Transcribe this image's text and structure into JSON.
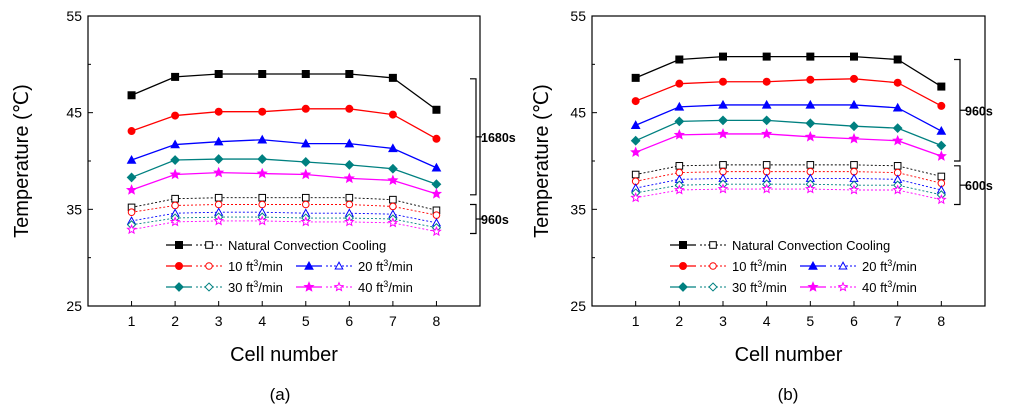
{
  "chart_data": [
    {
      "type": "line",
      "caption": "(a)",
      "xlabel": "Cell number",
      "ylabel": "Temperature (℃)",
      "categories": [
        1,
        2,
        3,
        4,
        5,
        6,
        7,
        8
      ],
      "xlim": [
        0,
        9
      ],
      "ylim": [
        25,
        55
      ],
      "yticks": [
        25,
        35,
        45,
        55
      ],
      "legend_position": "bottom-center",
      "legend_title": "Natural Convection Cooling",
      "legend_rows": [
        [
          "10 ft³/min",
          "20 ft³/min"
        ],
        [
          "30 ft³/min",
          "40 ft³/min"
        ]
      ],
      "brackets": [
        {
          "label": "1680s",
          "from": 36.5,
          "to": 48.5
        },
        {
          "label": "960s",
          "from": 32.5,
          "to": 35.5
        }
      ],
      "series": [
        {
          "name": "Natural Convection Cooling",
          "time": "1680s",
          "marker": "square",
          "filled": true,
          "color": "#000000",
          "values": [
            46.8,
            48.7,
            49.0,
            49.0,
            49.0,
            49.0,
            48.6,
            45.3
          ]
        },
        {
          "name": "10 ft³/min",
          "time": "1680s",
          "marker": "circle",
          "filled": true,
          "color": "#ff0000",
          "values": [
            43.1,
            44.7,
            45.1,
            45.1,
            45.4,
            45.4,
            44.8,
            42.3
          ]
        },
        {
          "name": "20 ft³/min",
          "time": "1680s",
          "marker": "triangle",
          "filled": true,
          "color": "#0000ff",
          "values": [
            40.1,
            41.7,
            42.0,
            42.2,
            41.8,
            41.8,
            41.3,
            39.3
          ]
        },
        {
          "name": "30 ft³/min",
          "time": "1680s",
          "marker": "diamond",
          "filled": true,
          "color": "#008080",
          "values": [
            38.3,
            40.1,
            40.2,
            40.2,
            39.9,
            39.6,
            39.2,
            37.6
          ]
        },
        {
          "name": "40 ft³/min",
          "time": "1680s",
          "marker": "star",
          "filled": true,
          "color": "#ff00ff",
          "values": [
            37.0,
            38.6,
            38.8,
            38.7,
            38.6,
            38.2,
            38.0,
            36.6
          ]
        },
        {
          "name": "Natural Convection Cooling",
          "time": "960s",
          "marker": "square",
          "filled": false,
          "color": "#000000",
          "values": [
            35.2,
            36.1,
            36.2,
            36.2,
            36.2,
            36.2,
            36.0,
            34.9
          ]
        },
        {
          "name": "10 ft³/min",
          "time": "960s",
          "marker": "circle",
          "filled": false,
          "color": "#ff0000",
          "values": [
            34.7,
            35.4,
            35.5,
            35.5,
            35.5,
            35.5,
            35.3,
            34.4
          ]
        },
        {
          "name": "20 ft³/min",
          "time": "960s",
          "marker": "triangle",
          "filled": false,
          "color": "#0000ff",
          "values": [
            33.8,
            34.6,
            34.7,
            34.7,
            34.6,
            34.6,
            34.5,
            33.6
          ]
        },
        {
          "name": "30 ft³/min",
          "time": "960s",
          "marker": "diamond",
          "filled": false,
          "color": "#008080",
          "values": [
            33.4,
            34.1,
            34.2,
            34.2,
            34.1,
            34.1,
            34.0,
            33.1
          ]
        },
        {
          "name": "40 ft³/min",
          "time": "960s",
          "marker": "star",
          "filled": false,
          "color": "#ff00ff",
          "values": [
            32.9,
            33.7,
            33.8,
            33.8,
            33.7,
            33.7,
            33.6,
            32.7
          ]
        }
      ]
    },
    {
      "type": "line",
      "caption": "(b)",
      "xlabel": "Cell number",
      "ylabel": "Temperature (℃)",
      "categories": [
        1,
        2,
        3,
        4,
        5,
        6,
        7,
        8
      ],
      "xlim": [
        0,
        9
      ],
      "ylim": [
        25,
        55
      ],
      "yticks": [
        25,
        35,
        45,
        55
      ],
      "legend_position": "bottom-center",
      "legend_title": "Natural Convection Cooling",
      "legend_rows": [
        [
          "10 ft³/min",
          "20 ft³/min"
        ],
        [
          "30 ft³/min",
          "40 ft³/min"
        ]
      ],
      "brackets": [
        {
          "label": "960s",
          "from": 40.0,
          "to": 50.5
        },
        {
          "label": "600s",
          "from": 35.5,
          "to": 39.5
        }
      ],
      "series": [
        {
          "name": "Natural Convection Cooling",
          "time": "960s",
          "marker": "square",
          "filled": true,
          "color": "#000000",
          "values": [
            48.6,
            50.5,
            50.8,
            50.8,
            50.8,
            50.8,
            50.5,
            47.7
          ]
        },
        {
          "name": "10 ft³/min",
          "time": "960s",
          "marker": "circle",
          "filled": true,
          "color": "#ff0000",
          "values": [
            46.2,
            48.0,
            48.2,
            48.2,
            48.4,
            48.5,
            48.1,
            45.7
          ]
        },
        {
          "name": "20 ft³/min",
          "time": "960s",
          "marker": "triangle",
          "filled": true,
          "color": "#0000ff",
          "values": [
            43.7,
            45.6,
            45.8,
            45.8,
            45.8,
            45.8,
            45.5,
            43.1
          ]
        },
        {
          "name": "30 ft³/min",
          "time": "960s",
          "marker": "diamond",
          "filled": true,
          "color": "#008080",
          "values": [
            42.1,
            44.1,
            44.2,
            44.2,
            43.9,
            43.6,
            43.4,
            41.6
          ]
        },
        {
          "name": "40 ft³/min",
          "time": "960s",
          "marker": "star",
          "filled": true,
          "color": "#ff00ff",
          "values": [
            40.9,
            42.7,
            42.8,
            42.8,
            42.5,
            42.3,
            42.1,
            40.5
          ]
        },
        {
          "name": "Natural Convection Cooling",
          "time": "600s",
          "marker": "square",
          "filled": false,
          "color": "#000000",
          "values": [
            38.6,
            39.5,
            39.6,
            39.6,
            39.6,
            39.6,
            39.5,
            38.4
          ]
        },
        {
          "name": "10 ft³/min",
          "time": "600s",
          "marker": "circle",
          "filled": false,
          "color": "#ff0000",
          "values": [
            37.9,
            38.8,
            38.9,
            38.9,
            38.9,
            38.9,
            38.8,
            37.7
          ]
        },
        {
          "name": "20 ft³/min",
          "time": "600s",
          "marker": "triangle",
          "filled": false,
          "color": "#0000ff",
          "values": [
            37.2,
            38.1,
            38.2,
            38.2,
            38.2,
            38.2,
            38.1,
            37.0
          ]
        },
        {
          "name": "30 ft³/min",
          "time": "600s",
          "marker": "diamond",
          "filled": false,
          "color": "#008080",
          "values": [
            36.7,
            37.5,
            37.6,
            37.6,
            37.6,
            37.5,
            37.5,
            36.5
          ]
        },
        {
          "name": "40 ft³/min",
          "time": "600s",
          "marker": "star",
          "filled": false,
          "color": "#ff00ff",
          "values": [
            36.2,
            37.0,
            37.1,
            37.1,
            37.1,
            37.0,
            37.0,
            36.0
          ]
        }
      ]
    }
  ]
}
